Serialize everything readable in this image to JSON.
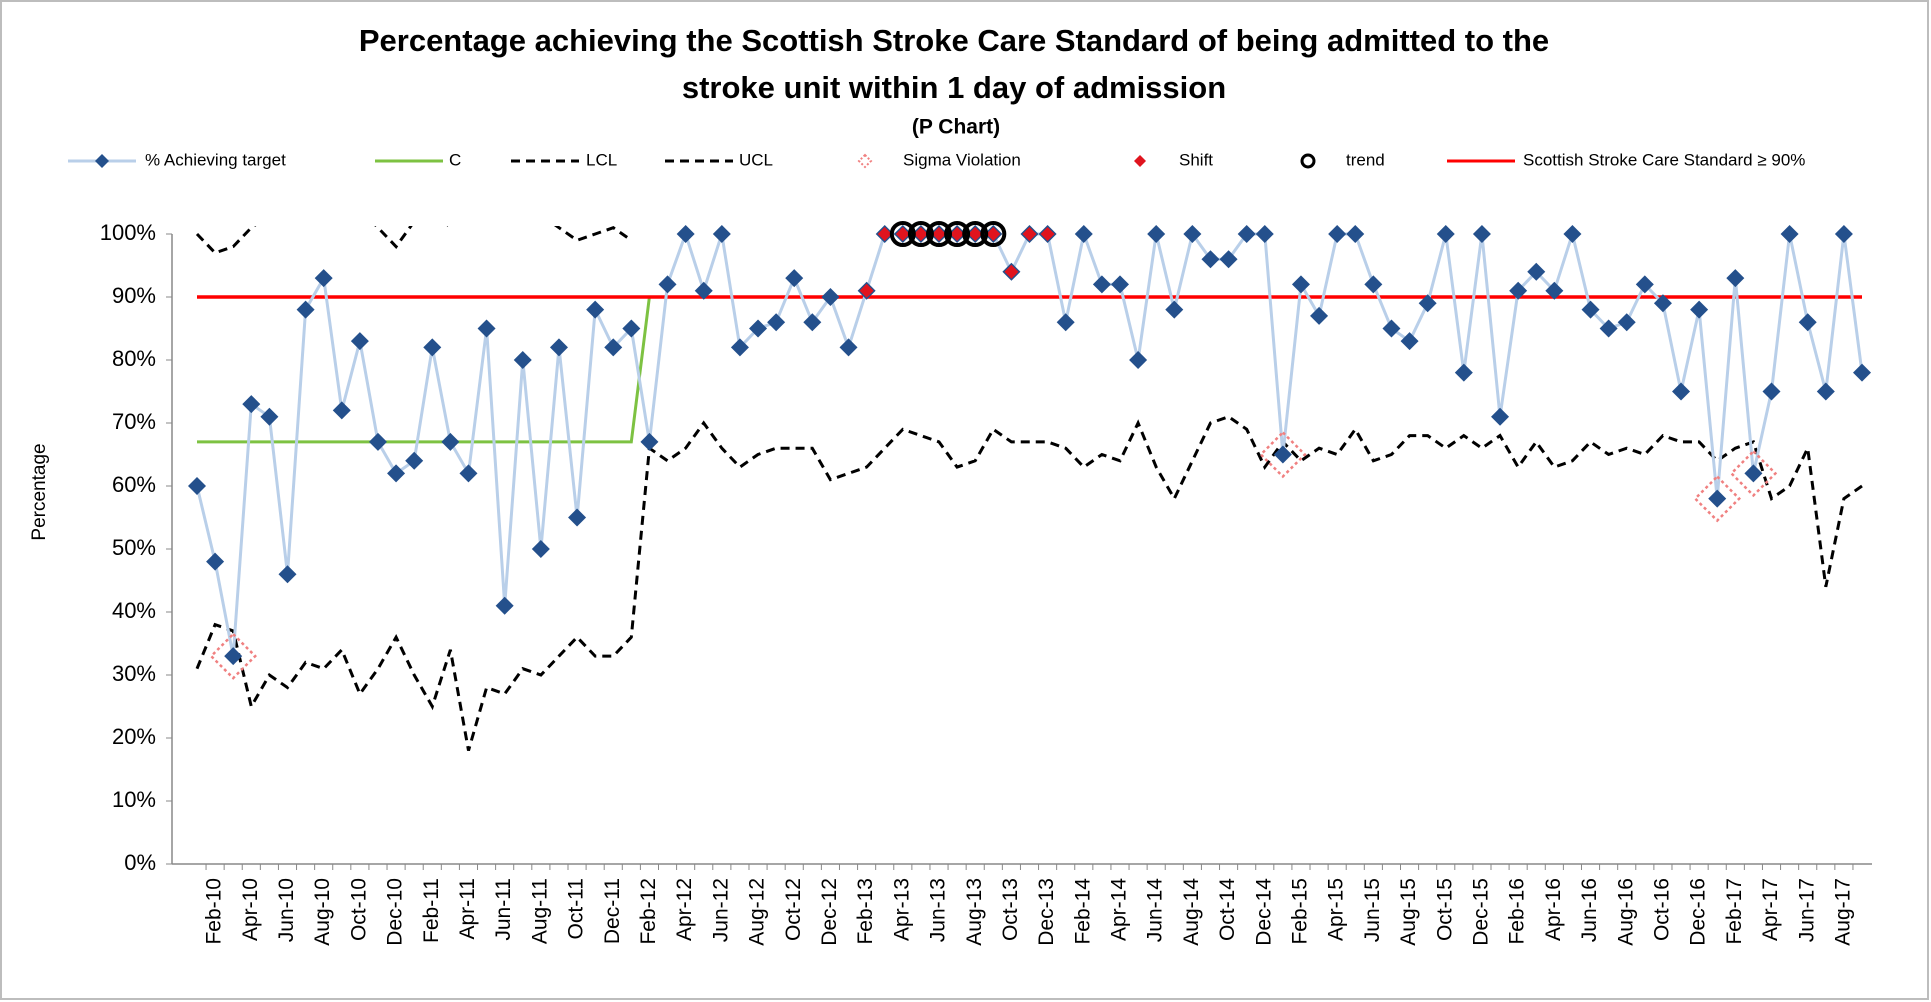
{
  "chart_data": {
    "type": "line",
    "title": [
      "Percentage achieving the Scottish Stroke Care Standard of being admitted to the",
      "stroke unit within 1 day of admission"
    ],
    "subtitle": "(P Chart)",
    "y_label": "Percentage",
    "categories": [
      null,
      "Feb-10",
      null,
      "Apr-10",
      null,
      "Jun-10",
      null,
      "Aug-10",
      null,
      "Oct-10",
      null,
      "Dec-10",
      null,
      "Feb-11",
      null,
      "Apr-11",
      null,
      "Jun-11",
      null,
      "Aug-11",
      null,
      "Oct-11",
      null,
      "Dec-11",
      null,
      "Feb-12",
      null,
      "Apr-12",
      null,
      "Jun-12",
      null,
      "Aug-12",
      null,
      "Oct-12",
      null,
      "Dec-12",
      null,
      "Feb-13",
      null,
      "Apr-13",
      null,
      "Jun-13",
      null,
      "Aug-13",
      null,
      "Oct-13",
      null,
      "Dec-13",
      null,
      "Feb-14",
      null,
      "Apr-14",
      null,
      "Jun-14",
      null,
      "Aug-14",
      null,
      "Oct-14",
      null,
      "Dec-14",
      null,
      "Feb-15",
      null,
      "Apr-15",
      null,
      "Jun-15",
      null,
      "Aug-15",
      null,
      "Oct-15",
      null,
      "Dec-15",
      null,
      "Feb-16",
      null,
      "Apr-16",
      null,
      "Jun-16",
      null,
      "Aug-16",
      null,
      "Oct-16",
      null,
      "Dec-16",
      null,
      "Feb-17",
      null,
      "Apr-17",
      null,
      "Jun-17",
      null,
      "Aug-17",
      null
    ],
    "ylim": [
      0,
      100
    ],
    "yticks": [
      {
        "value": 0,
        "label": "0%"
      },
      {
        "value": 10,
        "label": "10%"
      },
      {
        "value": 20,
        "label": "20%"
      },
      {
        "value": 30,
        "label": "30%"
      },
      {
        "value": 40,
        "label": "40%"
      },
      {
        "value": 50,
        "label": "50%"
      },
      {
        "value": 60,
        "label": "60%"
      },
      {
        "value": 70,
        "label": "70%"
      },
      {
        "value": 80,
        "label": "80%"
      },
      {
        "value": 90,
        "label": "90%"
      },
      {
        "value": 100,
        "label": "100%"
      }
    ],
    "series": [
      {
        "name": "% Achieving target",
        "style": "line-markers",
        "color": "#b9cfe9",
        "marker_color": "#24508c",
        "values": [
          60,
          48,
          33,
          73,
          71,
          46,
          88,
          93,
          72,
          83,
          67,
          62,
          64,
          82,
          67,
          62,
          85,
          41,
          80,
          50,
          82,
          55,
          88,
          82,
          85,
          67,
          92,
          100,
          91,
          100,
          82,
          85,
          86,
          93,
          86,
          90,
          82,
          91,
          100,
          100,
          100,
          100,
          100,
          100,
          100,
          94,
          100,
          100,
          86,
          100,
          92,
          92,
          80,
          100,
          88,
          100,
          96,
          96,
          100,
          100,
          65,
          92,
          87,
          100,
          100,
          92,
          85,
          83,
          89,
          100,
          78,
          100,
          71,
          91,
          94,
          91,
          100,
          88,
          85,
          86,
          92,
          89,
          75,
          88,
          58,
          93,
          62,
          75,
          100,
          86,
          75,
          100,
          78
        ]
      },
      {
        "name": "C",
        "style": "line",
        "color": "#7dc242",
        "values": [
          67,
          67,
          67,
          67,
          67,
          67,
          67,
          67,
          67,
          67,
          67,
          67,
          67,
          67,
          67,
          67,
          67,
          67,
          67,
          67,
          67,
          67,
          67,
          67,
          67,
          90,
          90,
          90,
          90,
          90,
          90,
          90,
          90,
          90,
          90,
          90,
          90,
          90,
          90,
          90,
          90,
          90,
          90,
          90,
          90,
          90,
          90,
          90,
          90,
          90,
          90,
          90,
          90,
          90,
          90,
          90,
          90,
          90,
          90,
          90,
          90,
          90,
          90,
          90,
          90,
          90,
          90,
          90,
          90,
          90,
          90,
          90,
          90,
          90,
          90,
          90,
          90,
          90,
          90,
          90,
          90,
          90,
          90,
          90,
          90,
          90,
          90,
          90,
          90,
          90,
          90,
          90,
          90
        ]
      },
      {
        "name": "LCL",
        "style": "dashed",
        "color": "#000000",
        "values": [
          31,
          38,
          37,
          25,
          30,
          28,
          32,
          31,
          34,
          27,
          31,
          36,
          30,
          25,
          34,
          18,
          28,
          27,
          31,
          30,
          33,
          36,
          33,
          33,
          36,
          66,
          64,
          66,
          70,
          66,
          63,
          65,
          66,
          66,
          66,
          61,
          62,
          63,
          66,
          69,
          68,
          67,
          63,
          64,
          69,
          67,
          67,
          67,
          66,
          63,
          65,
          64,
          70,
          63,
          58,
          64,
          70,
          71,
          69,
          63,
          67,
          64,
          66,
          65,
          69,
          64,
          65,
          68,
          68,
          66,
          68,
          66,
          68,
          63,
          67,
          63,
          64,
          67,
          65,
          66,
          65,
          68,
          67,
          67,
          64,
          66,
          67,
          58,
          60,
          66,
          44,
          58,
          60
        ]
      },
      {
        "name": "UCL",
        "style": "dashed",
        "color": "#000000",
        "values": [
          100,
          97,
          98,
          101,
          103,
          104,
          102,
          103,
          102,
          104,
          101,
          98,
          102,
          104,
          101,
          106,
          103,
          104,
          102,
          103,
          101,
          99,
          100,
          101,
          99,
          null,
          null,
          null,
          null,
          null,
          null,
          null,
          null,
          null,
          null,
          null,
          null,
          null,
          null,
          null,
          null,
          null,
          null,
          null,
          null,
          null,
          null,
          null,
          null,
          null,
          null,
          null,
          null,
          null,
          null,
          null,
          null,
          null,
          null,
          null,
          null,
          null,
          null,
          null,
          null,
          null,
          null,
          null,
          null,
          null,
          null,
          null,
          null,
          null,
          null,
          null,
          null,
          null,
          null,
          null,
          null,
          null,
          null,
          null,
          null,
          null,
          null,
          null,
          null,
          null,
          null,
          null,
          null
        ]
      },
      {
        "name": "Sigma Violation",
        "style": "sigma",
        "color": "#f08080",
        "values": [
          null,
          null,
          33,
          null,
          null,
          null,
          null,
          null,
          null,
          null,
          null,
          null,
          null,
          null,
          null,
          null,
          null,
          null,
          null,
          null,
          null,
          null,
          null,
          null,
          null,
          null,
          null,
          null,
          null,
          null,
          null,
          null,
          null,
          null,
          null,
          null,
          null,
          null,
          null,
          null,
          null,
          null,
          null,
          null,
          null,
          null,
          null,
          null,
          null,
          null,
          null,
          null,
          null,
          null,
          null,
          null,
          null,
          null,
          null,
          null,
          65,
          null,
          null,
          null,
          null,
          null,
          null,
          null,
          null,
          null,
          null,
          null,
          null,
          null,
          null,
          null,
          null,
          null,
          null,
          null,
          null,
          null,
          null,
          null,
          58,
          null,
          62,
          null,
          null,
          null,
          null,
          null,
          null
        ]
      },
      {
        "name": "Shift",
        "style": "shift",
        "color": "#e0141e",
        "values": [
          null,
          null,
          null,
          null,
          null,
          null,
          null,
          null,
          null,
          null,
          null,
          null,
          null,
          null,
          null,
          null,
          null,
          null,
          null,
          null,
          null,
          null,
          null,
          null,
          null,
          null,
          null,
          null,
          null,
          null,
          null,
          null,
          null,
          null,
          null,
          null,
          null,
          91,
          100,
          100,
          100,
          100,
          100,
          100,
          100,
          94,
          100,
          100,
          null,
          null,
          null,
          null,
          null,
          null,
          null,
          null,
          null,
          null,
          null,
          null,
          null,
          null,
          null,
          null,
          null,
          null,
          null,
          null,
          null,
          null,
          null,
          null,
          null,
          null,
          null,
          null,
          null,
          null,
          null,
          null,
          null,
          null,
          null,
          null,
          null,
          null,
          null,
          null,
          null,
          null,
          null,
          null,
          null
        ]
      },
      {
        "name": "trend",
        "style": "trend",
        "color": "#000000",
        "values": [
          null,
          null,
          null,
          null,
          null,
          null,
          null,
          null,
          null,
          null,
          null,
          null,
          null,
          null,
          null,
          null,
          null,
          null,
          null,
          null,
          null,
          null,
          null,
          null,
          null,
          null,
          null,
          null,
          null,
          null,
          null,
          null,
          null,
          null,
          null,
          null,
          null,
          null,
          null,
          100,
          100,
          100,
          100,
          100,
          100,
          null,
          null,
          null,
          null,
          null,
          null,
          null,
          null,
          null,
          null,
          null,
          null,
          null,
          null,
          null,
          null,
          null,
          null,
          null,
          null,
          null,
          null,
          null,
          null,
          null,
          null,
          null,
          null,
          null,
          null,
          null,
          null,
          null,
          null,
          null,
          null,
          null,
          null,
          null,
          null,
          null,
          null,
          null,
          null,
          null,
          null,
          null,
          null
        ]
      },
      {
        "name": "Scottish Stroke Care Standard ≥ 90%",
        "style": "hline",
        "color": "#ff0000",
        "value": 90
      }
    ]
  }
}
